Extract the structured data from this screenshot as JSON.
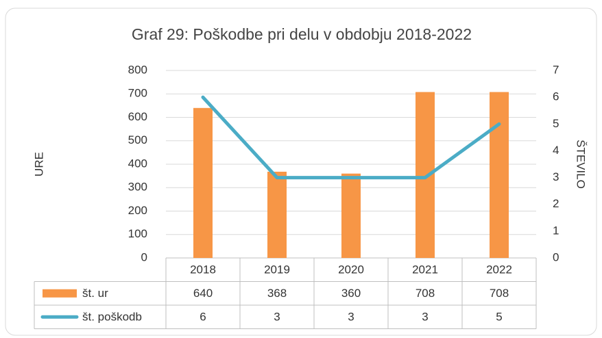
{
  "chart_data": {
    "type": "bar",
    "title": "Graf 29: Poškodbe pri delu v obdobju 2018-2022",
    "categories": [
      "2018",
      "2019",
      "2020",
      "2021",
      "2022"
    ],
    "series": [
      {
        "name": "št. ur",
        "type": "bar",
        "color": "#f79646",
        "values": [
          640,
          368,
          360,
          708,
          708
        ]
      },
      {
        "name": "št. poškodb",
        "type": "line",
        "axis": "y2",
        "color": "#4bacc6",
        "values": [
          6,
          3,
          3,
          3,
          5
        ]
      }
    ],
    "ylabel": "URE",
    "y2label": "ŠTEVILO",
    "ylim": [
      0,
      800
    ],
    "yticks": [
      0,
      100,
      200,
      300,
      400,
      500,
      600,
      700,
      800
    ],
    "y2lim": [
      0,
      7
    ],
    "y2ticks": [
      0,
      1,
      2,
      3,
      4,
      5,
      6,
      7
    ],
    "grid": true
  }
}
